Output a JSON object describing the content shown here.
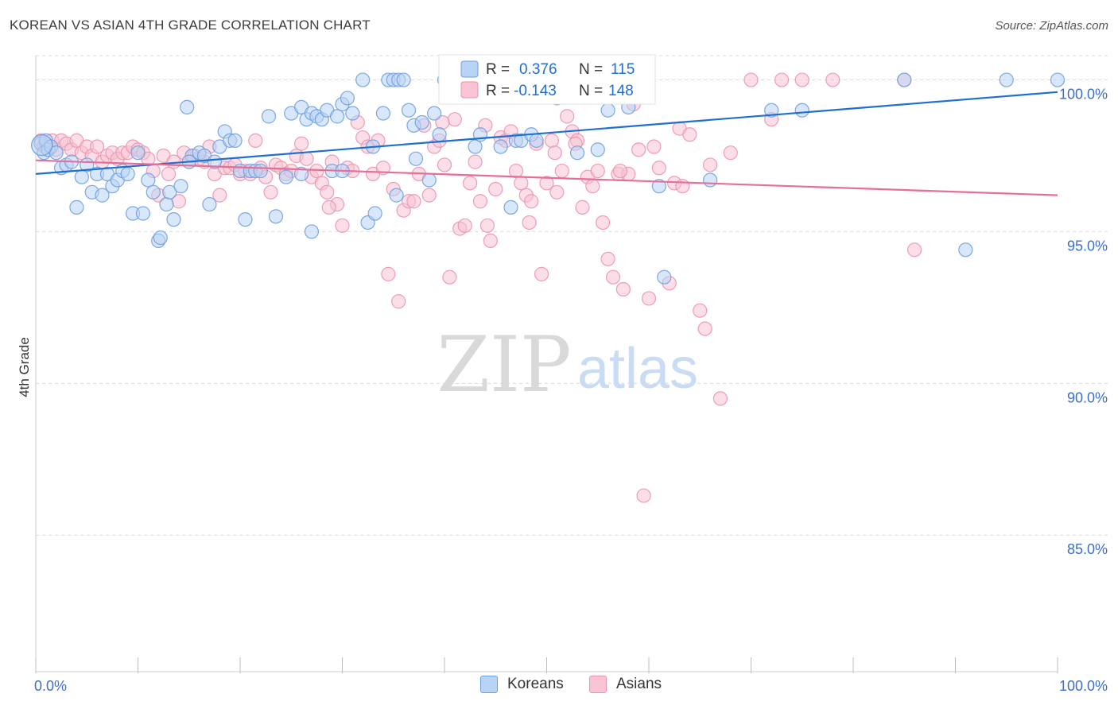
{
  "title": "KOREAN VS ASIAN 4TH GRADE CORRELATION CHART",
  "source": "Source: ZipAtlas.com",
  "watermark": {
    "zip": "ZIP",
    "atlas": "atlas"
  },
  "colors": {
    "koreans_fill": "#b9d3f5",
    "koreans_stroke": "#6f9ee0",
    "koreans_line": "#1f6fd1",
    "asians_fill": "#f8c3d3",
    "asians_stroke": "#ec93ad",
    "asians_line": "#e56f96",
    "axis_text": "#3d6ec9",
    "grid": "#dcdcdc"
  },
  "legend": {
    "r_label": "R =",
    "n_label": "N =",
    "rows": [
      {
        "series": "Koreans",
        "r": "0.376",
        "n": "115"
      },
      {
        "series": "Asians",
        "r": "-0.143",
        "n": "148"
      }
    ]
  },
  "bottom_legend": [
    "Koreans",
    "Asians"
  ],
  "chart_data": {
    "type": "scatter",
    "title": "KOREAN VS ASIAN 4TH GRADE CORRELATION CHART",
    "xlabel": "",
    "ylabel": "4th Grade",
    "xlim": [
      0,
      100
    ],
    "ylim": [
      80.5,
      100.8
    ],
    "x_tick_labels": [
      "0.0%",
      "100.0%"
    ],
    "y_ticks": [
      85,
      90,
      95,
      100
    ],
    "y_tick_labels": [
      "85.0%",
      "90.0%",
      "95.0%",
      "100.0%"
    ],
    "grid": true,
    "series": [
      {
        "name": "Koreans",
        "trend": {
          "x": [
            0,
            100
          ],
          "y": [
            96.9,
            99.6
          ]
        },
        "points": [
          [
            0.5,
            97.9
          ],
          [
            0.8,
            97.6
          ],
          [
            1.0,
            98.0
          ],
          [
            1.2,
            97.7
          ],
          [
            1.5,
            97.8
          ],
          [
            2.0,
            97.6
          ],
          [
            2.5,
            97.1
          ],
          [
            3.0,
            97.2
          ],
          [
            3.5,
            97.3
          ],
          [
            4.0,
            95.8
          ],
          [
            4.5,
            96.8
          ],
          [
            5.0,
            97.2
          ],
          [
            5.5,
            96.3
          ],
          [
            6.0,
            96.9
          ],
          [
            6.5,
            96.2
          ],
          [
            7.0,
            96.9
          ],
          [
            7.5,
            96.5
          ],
          [
            8.0,
            96.7
          ],
          [
            8.5,
            97.0
          ],
          [
            9.0,
            96.9
          ],
          [
            9.5,
            95.6
          ],
          [
            10.0,
            97.6
          ],
          [
            10.5,
            95.6
          ],
          [
            11.0,
            96.7
          ],
          [
            11.5,
            96.3
          ],
          [
            12.0,
            94.7
          ],
          [
            12.2,
            94.8
          ],
          [
            12.8,
            95.9
          ],
          [
            13.1,
            96.3
          ],
          [
            13.5,
            95.4
          ],
          [
            14.2,
            96.5
          ],
          [
            14.8,
            99.1
          ],
          [
            15.3,
            97.5
          ],
          [
            16.0,
            97.6
          ],
          [
            16.5,
            97.5
          ],
          [
            17.0,
            95.9
          ],
          [
            17.5,
            97.3
          ],
          [
            18.0,
            97.8
          ],
          [
            18.5,
            98.3
          ],
          [
            19.0,
            98.0
          ],
          [
            19.5,
            98.0
          ],
          [
            20.0,
            97.0
          ],
          [
            20.5,
            95.4
          ],
          [
            21.0,
            97.0
          ],
          [
            21.5,
            97.0
          ],
          [
            22.0,
            97.0
          ],
          [
            22.8,
            98.8
          ],
          [
            23.5,
            95.5
          ],
          [
            24.5,
            96.8
          ],
          [
            25.0,
            98.9
          ],
          [
            26.0,
            99.1
          ],
          [
            26.5,
            98.7
          ],
          [
            27.0,
            98.9
          ],
          [
            27.5,
            98.8
          ],
          [
            28.0,
            98.7
          ],
          [
            28.5,
            99.0
          ],
          [
            29.0,
            97.0
          ],
          [
            29.5,
            98.8
          ],
          [
            30.0,
            99.2
          ],
          [
            30.5,
            99.4
          ],
          [
            31.0,
            98.9
          ],
          [
            32.0,
            100.0
          ],
          [
            32.5,
            95.3
          ],
          [
            33.0,
            97.8
          ],
          [
            33.2,
            95.6
          ],
          [
            34.0,
            98.9
          ],
          [
            34.5,
            100.0
          ],
          [
            35.0,
            100.0
          ],
          [
            35.3,
            96.2
          ],
          [
            35.5,
            100.0
          ],
          [
            36.0,
            100.0
          ],
          [
            36.5,
            99.0
          ],
          [
            37.0,
            98.5
          ],
          [
            37.2,
            97.4
          ],
          [
            37.8,
            98.6
          ],
          [
            38.5,
            96.7
          ],
          [
            39.0,
            98.9
          ],
          [
            39.5,
            98.2
          ],
          [
            40.0,
            100.0
          ],
          [
            42.0,
            100.0
          ],
          [
            43.0,
            97.8
          ],
          [
            43.5,
            98.2
          ],
          [
            45.0,
            100.0
          ],
          [
            45.5,
            97.8
          ],
          [
            46.5,
            95.8
          ],
          [
            47.0,
            98.0
          ],
          [
            47.5,
            98.0
          ],
          [
            48.5,
            98.2
          ],
          [
            49.0,
            98.0
          ],
          [
            50.0,
            100.0
          ],
          [
            51.0,
            99.4
          ],
          [
            53.0,
            97.6
          ],
          [
            54.0,
            100.0
          ],
          [
            55.0,
            97.7
          ],
          [
            56.0,
            99.0
          ],
          [
            56.5,
            100.0
          ],
          [
            58.0,
            99.1
          ],
          [
            61.0,
            96.5
          ],
          [
            61.5,
            93.5
          ],
          [
            66.0,
            96.7
          ],
          [
            72.0,
            99.0
          ],
          [
            75.0,
            99.0
          ],
          [
            85.0,
            100.0
          ],
          [
            91.0,
            94.4
          ],
          [
            100.0,
            100.0
          ],
          [
            95.0,
            100.0
          ],
          [
            27.0,
            95.0
          ],
          [
            26.0,
            96.9
          ],
          [
            15.0,
            97.3
          ],
          [
            30.0,
            97.0
          ]
        ]
      },
      {
        "name": "Asians",
        "trend": {
          "x": [
            0,
            100
          ],
          "y": [
            97.35,
            96.2
          ]
        },
        "points": [
          [
            0.5,
            98.0
          ],
          [
            0.8,
            97.8
          ],
          [
            1.0,
            97.9
          ],
          [
            1.3,
            97.8
          ],
          [
            1.6,
            98.0
          ],
          [
            2.0,
            97.7
          ],
          [
            2.5,
            98.0
          ],
          [
            3.0,
            97.9
          ],
          [
            3.5,
            97.7
          ],
          [
            4.0,
            98.0
          ],
          [
            4.5,
            97.6
          ],
          [
            5.0,
            97.8
          ],
          [
            5.5,
            97.5
          ],
          [
            6.0,
            97.8
          ],
          [
            6.5,
            97.3
          ],
          [
            7.0,
            97.5
          ],
          [
            7.5,
            97.6
          ],
          [
            8.0,
            97.4
          ],
          [
            8.5,
            97.6
          ],
          [
            9.0,
            97.6
          ],
          [
            9.5,
            97.8
          ],
          [
            10.0,
            97.7
          ],
          [
            10.5,
            97.6
          ],
          [
            11.0,
            97.4
          ],
          [
            11.5,
            97.0
          ],
          [
            12.0,
            96.2
          ],
          [
            12.5,
            97.5
          ],
          [
            13.0,
            96.9
          ],
          [
            13.5,
            97.3
          ],
          [
            14.0,
            96.0
          ],
          [
            14.5,
            97.6
          ],
          [
            15.0,
            97.3
          ],
          [
            15.5,
            97.5
          ],
          [
            16.0,
            97.4
          ],
          [
            16.5,
            97.3
          ],
          [
            17.0,
            97.8
          ],
          [
            17.5,
            96.9
          ],
          [
            18.0,
            96.2
          ],
          [
            18.5,
            97.1
          ],
          [
            19.0,
            97.1
          ],
          [
            19.5,
            97.2
          ],
          [
            20.0,
            96.9
          ],
          [
            20.5,
            97.0
          ],
          [
            21.0,
            96.9
          ],
          [
            21.5,
            98.0
          ],
          [
            22.0,
            97.1
          ],
          [
            22.5,
            96.8
          ],
          [
            23.0,
            96.3
          ],
          [
            23.5,
            97.2
          ],
          [
            24.0,
            97.1
          ],
          [
            24.5,
            96.9
          ],
          [
            25.0,
            97.0
          ],
          [
            25.5,
            97.5
          ],
          [
            26.0,
            97.9
          ],
          [
            26.5,
            97.4
          ],
          [
            27.0,
            96.8
          ],
          [
            27.5,
            97.0
          ],
          [
            28.0,
            96.6
          ],
          [
            28.5,
            96.3
          ],
          [
            29.0,
            97.3
          ],
          [
            29.5,
            95.9
          ],
          [
            30.0,
            95.2
          ],
          [
            30.5,
            97.1
          ],
          [
            31.0,
            97.0
          ],
          [
            31.5,
            98.6
          ],
          [
            32.0,
            98.1
          ],
          [
            32.5,
            97.8
          ],
          [
            33.0,
            96.9
          ],
          [
            33.5,
            98.0
          ],
          [
            34.0,
            97.1
          ],
          [
            34.5,
            93.6
          ],
          [
            35.0,
            96.4
          ],
          [
            35.5,
            92.7
          ],
          [
            36.0,
            95.7
          ],
          [
            36.5,
            96.0
          ],
          [
            37.0,
            96.0
          ],
          [
            37.5,
            96.9
          ],
          [
            38.0,
            98.5
          ],
          [
            38.5,
            96.2
          ],
          [
            39.0,
            97.8
          ],
          [
            39.5,
            98.0
          ],
          [
            40.0,
            97.2
          ],
          [
            40.5,
            93.5
          ],
          [
            41.0,
            98.7
          ],
          [
            41.5,
            95.1
          ],
          [
            42.0,
            95.2
          ],
          [
            42.5,
            96.6
          ],
          [
            43.0,
            97.3
          ],
          [
            43.5,
            96.0
          ],
          [
            44.0,
            98.5
          ],
          [
            44.5,
            94.7
          ],
          [
            45.0,
            96.4
          ],
          [
            45.5,
            98.1
          ],
          [
            46.0,
            98.0
          ],
          [
            46.5,
            98.3
          ],
          [
            47.0,
            97.0
          ],
          [
            47.5,
            96.6
          ],
          [
            48.0,
            96.2
          ],
          [
            48.5,
            96.0
          ],
          [
            49.0,
            97.9
          ],
          [
            49.5,
            93.6
          ],
          [
            50.0,
            96.6
          ],
          [
            50.5,
            98.0
          ],
          [
            51.0,
            96.3
          ],
          [
            51.5,
            97.0
          ],
          [
            52.0,
            98.8
          ],
          [
            52.5,
            98.3
          ],
          [
            53.0,
            98.0
          ],
          [
            53.5,
            95.8
          ],
          [
            54.0,
            96.8
          ],
          [
            54.5,
            96.5
          ],
          [
            55.0,
            97.0
          ],
          [
            55.5,
            95.3
          ],
          [
            56.0,
            94.1
          ],
          [
            56.5,
            93.5
          ],
          [
            57.0,
            96.9
          ],
          [
            57.5,
            93.1
          ],
          [
            58.0,
            96.9
          ],
          [
            58.5,
            99.2
          ],
          [
            59.0,
            97.7
          ],
          [
            60.0,
            92.8
          ],
          [
            60.5,
            97.8
          ],
          [
            61.0,
            97.1
          ],
          [
            62.0,
            93.3
          ],
          [
            62.5,
            96.6
          ],
          [
            63.0,
            98.4
          ],
          [
            64.0,
            98.2
          ],
          [
            65.0,
            92.4
          ],
          [
            65.5,
            91.8
          ],
          [
            66.0,
            97.2
          ],
          [
            67.0,
            89.5
          ],
          [
            68.0,
            97.6
          ],
          [
            70.0,
            100.0
          ],
          [
            72.0,
            98.7
          ],
          [
            73.0,
            100.0
          ],
          [
            75.0,
            100.0
          ],
          [
            78.0,
            100.0
          ],
          [
            85.0,
            100.0
          ],
          [
            86.0,
            94.4
          ],
          [
            63.3,
            96.5
          ],
          [
            59.5,
            86.3
          ],
          [
            57.2,
            97.0
          ],
          [
            52.8,
            97.9
          ],
          [
            50.8,
            97.6
          ],
          [
            48.3,
            95.3
          ],
          [
            44.2,
            95.2
          ],
          [
            39.8,
            98.6
          ],
          [
            28.7,
            95.8
          ]
        ]
      }
    ]
  }
}
